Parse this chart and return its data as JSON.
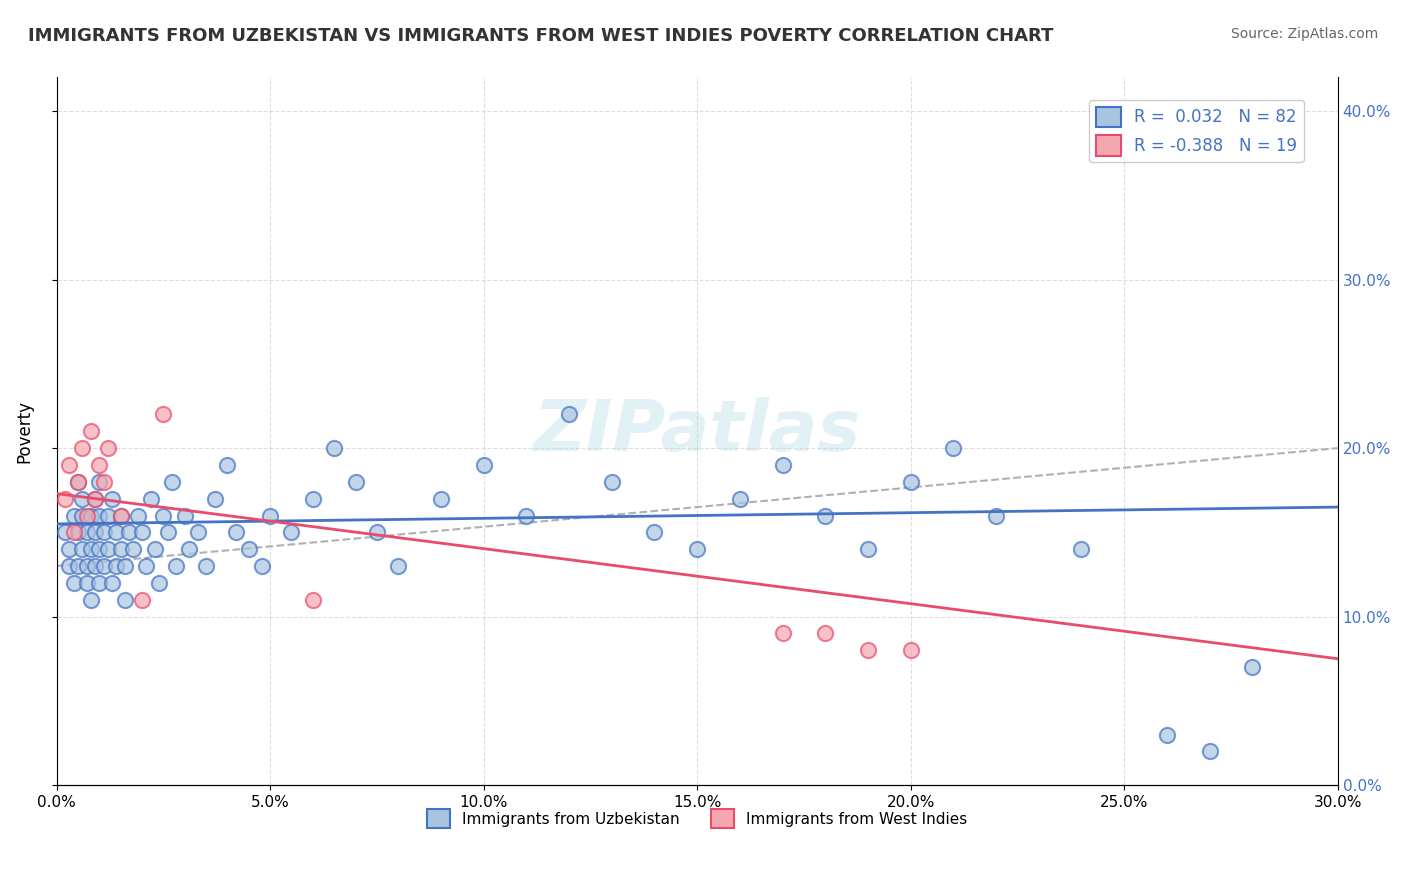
{
  "title": "IMMIGRANTS FROM UZBEKISTAN VS IMMIGRANTS FROM WEST INDIES POVERTY CORRELATION CHART",
  "source": "Source: ZipAtlas.com",
  "ylabel": "Poverty",
  "xlabel_uzbekistan": "Immigrants from Uzbekistan",
  "xlabel_west_indies": "Immigrants from West Indies",
  "xlim": [
    0.0,
    0.3
  ],
  "ylim": [
    0.0,
    0.42
  ],
  "xticks": [
    0.0,
    0.05,
    0.1,
    0.15,
    0.2,
    0.25,
    0.3
  ],
  "yticks": [
    0.0,
    0.1,
    0.2,
    0.3,
    0.4
  ],
  "r_uzbekistan": 0.032,
  "n_uzbekistan": 82,
  "r_west_indies": -0.388,
  "n_west_indies": 19,
  "color_uzbekistan": "#a8c4e0",
  "color_west_indies": "#f4a7b0",
  "color_uzbekistan_line": "#4472C4",
  "color_west_indies_line": "#E84C6A",
  "color_dashed": "#b0b0b0",
  "watermark": "ZIPatlas",
  "uzbekistan_x": [
    0.002,
    0.003,
    0.003,
    0.004,
    0.004,
    0.005,
    0.005,
    0.005,
    0.006,
    0.006,
    0.006,
    0.007,
    0.007,
    0.007,
    0.008,
    0.008,
    0.008,
    0.009,
    0.009,
    0.009,
    0.01,
    0.01,
    0.01,
    0.01,
    0.011,
    0.011,
    0.012,
    0.012,
    0.013,
    0.013,
    0.014,
    0.014,
    0.015,
    0.015,
    0.016,
    0.016,
    0.017,
    0.018,
    0.019,
    0.02,
    0.021,
    0.022,
    0.023,
    0.024,
    0.025,
    0.026,
    0.027,
    0.028,
    0.03,
    0.031,
    0.033,
    0.035,
    0.037,
    0.04,
    0.042,
    0.045,
    0.048,
    0.05,
    0.055,
    0.06,
    0.065,
    0.07,
    0.075,
    0.08,
    0.09,
    0.1,
    0.11,
    0.12,
    0.13,
    0.14,
    0.15,
    0.16,
    0.17,
    0.18,
    0.19,
    0.2,
    0.21,
    0.22,
    0.24,
    0.26,
    0.27,
    0.28
  ],
  "uzbekistan_y": [
    0.15,
    0.13,
    0.14,
    0.16,
    0.12,
    0.18,
    0.13,
    0.15,
    0.17,
    0.14,
    0.16,
    0.12,
    0.15,
    0.13,
    0.11,
    0.14,
    0.16,
    0.13,
    0.15,
    0.17,
    0.14,
    0.12,
    0.16,
    0.18,
    0.15,
    0.13,
    0.14,
    0.16,
    0.12,
    0.17,
    0.15,
    0.13,
    0.14,
    0.16,
    0.11,
    0.13,
    0.15,
    0.14,
    0.16,
    0.15,
    0.13,
    0.17,
    0.14,
    0.12,
    0.16,
    0.15,
    0.18,
    0.13,
    0.16,
    0.14,
    0.15,
    0.13,
    0.17,
    0.19,
    0.15,
    0.14,
    0.13,
    0.16,
    0.15,
    0.17,
    0.2,
    0.18,
    0.15,
    0.13,
    0.17,
    0.19,
    0.16,
    0.22,
    0.18,
    0.15,
    0.14,
    0.17,
    0.19,
    0.16,
    0.14,
    0.18,
    0.2,
    0.16,
    0.14,
    0.03,
    0.02,
    0.07
  ],
  "west_indies_x": [
    0.002,
    0.003,
    0.004,
    0.005,
    0.006,
    0.007,
    0.008,
    0.009,
    0.01,
    0.011,
    0.012,
    0.015,
    0.02,
    0.025,
    0.06,
    0.17,
    0.18,
    0.19,
    0.2
  ],
  "west_indies_y": [
    0.17,
    0.19,
    0.15,
    0.18,
    0.2,
    0.16,
    0.21,
    0.17,
    0.19,
    0.18,
    0.2,
    0.16,
    0.11,
    0.22,
    0.11,
    0.09,
    0.09,
    0.08,
    0.08
  ]
}
